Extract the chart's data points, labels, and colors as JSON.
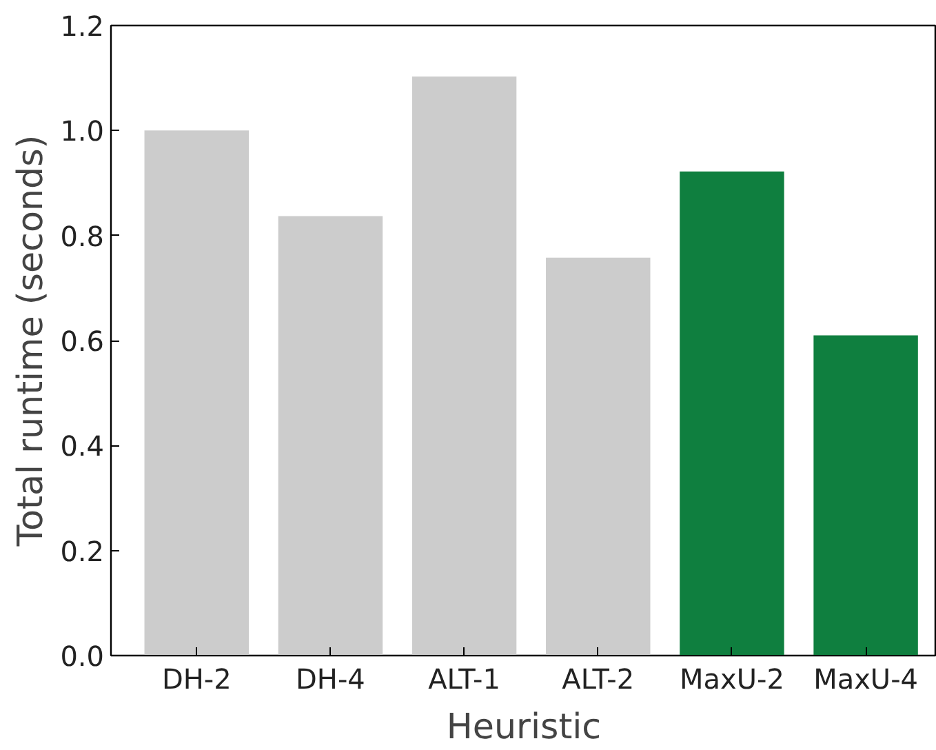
{
  "chart_data": {
    "type": "bar",
    "xlabel": "Heuristic",
    "ylabel": "Total runtime (seconds)",
    "categories": [
      "DH-2",
      "DH-4",
      "ALT-1",
      "ALT-2",
      "MaxU-2",
      "MaxU-4"
    ],
    "values": [
      1.0,
      0.837,
      1.103,
      0.758,
      0.922,
      0.61
    ],
    "colors": [
      "#cccccc",
      "#cccccc",
      "#cccccc",
      "#cccccc",
      "#0f7f3f",
      "#0f7f3f"
    ],
    "ylim": [
      0,
      1.2
    ],
    "yticks": [
      {
        "value": 0,
        "label": "0.0"
      },
      {
        "value": 0.2,
        "label": "0.2"
      },
      {
        "value": 0.4,
        "label": "0.4"
      },
      {
        "value": 0.6,
        "label": "0.6"
      },
      {
        "value": 0.8,
        "label": "0.8"
      },
      {
        "value": 1.0,
        "label": "1.0"
      },
      {
        "value": 1.2,
        "label": "1.2"
      }
    ],
    "grid": false
  }
}
